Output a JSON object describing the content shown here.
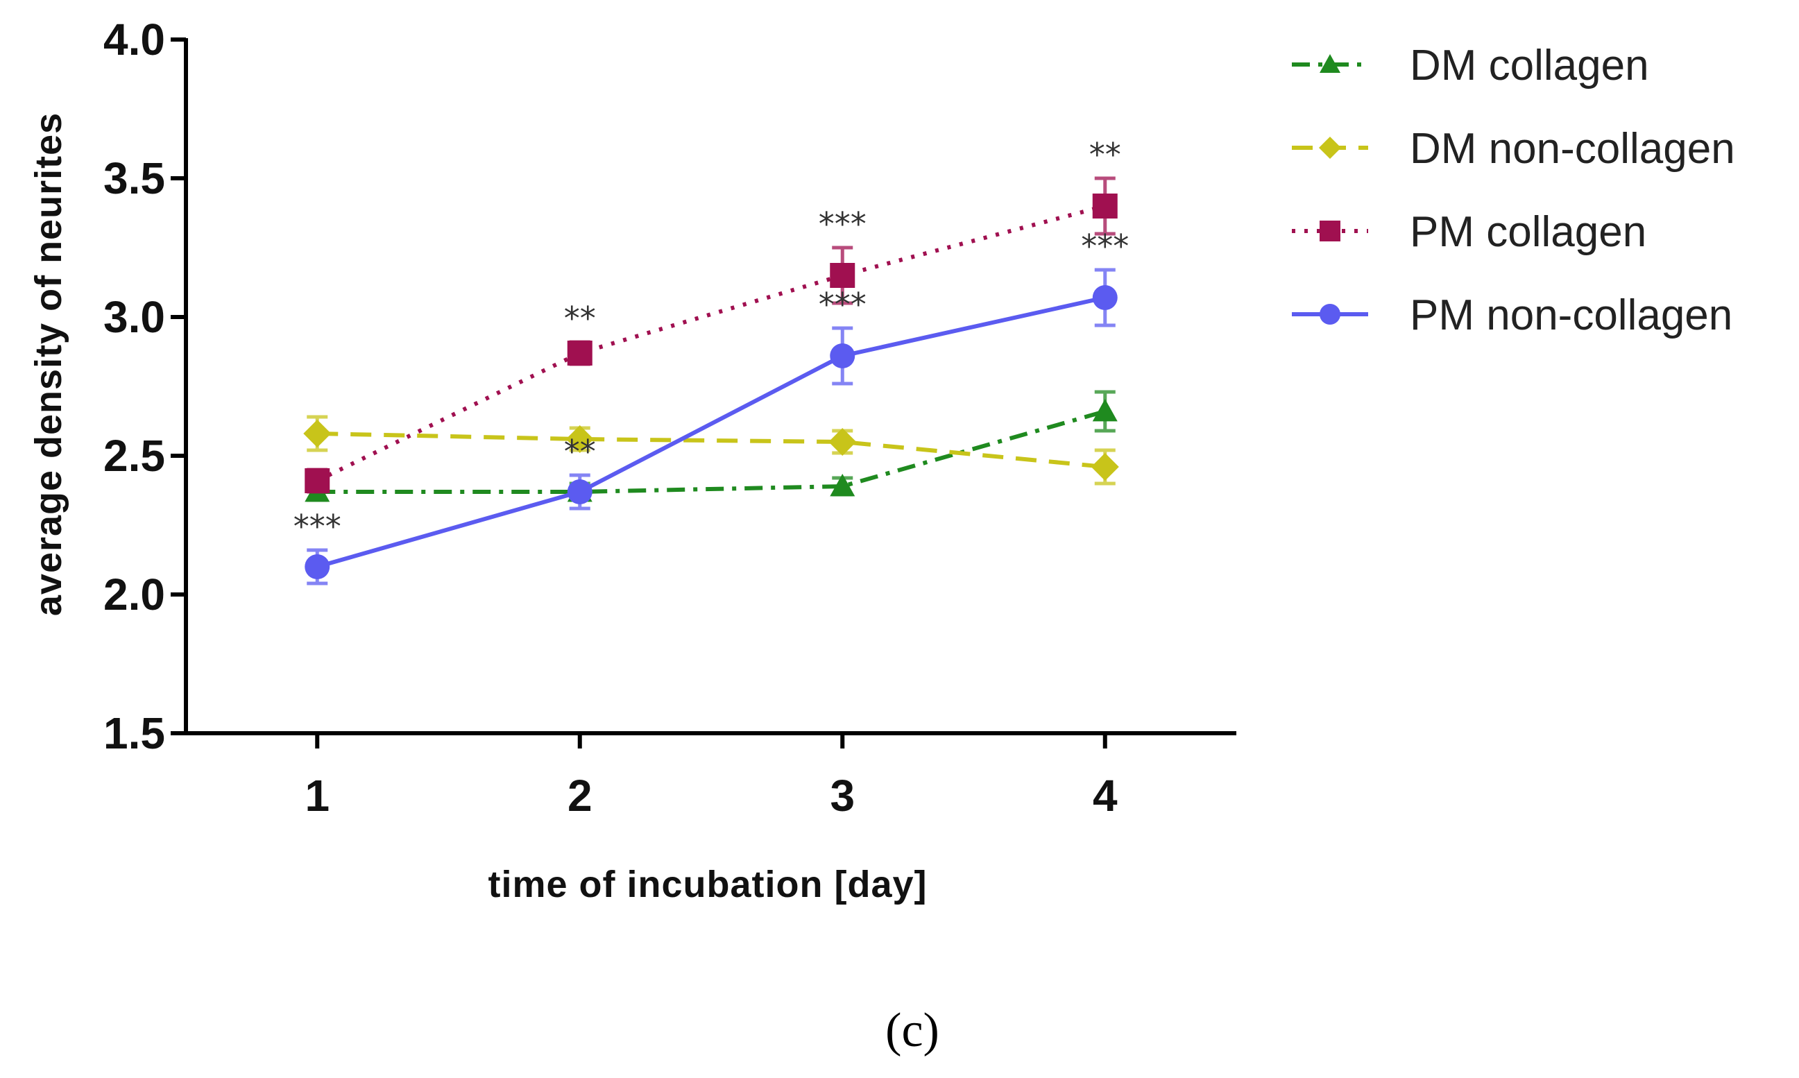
{
  "chart_data": {
    "type": "line",
    "xlabel": "time of incubation [day]",
    "ylabel": "average density of neurites",
    "x": [
      1,
      2,
      3,
      4
    ],
    "x_tick_labels": [
      "1",
      "2",
      "3",
      "4"
    ],
    "xlim": [
      0.5,
      4.5
    ],
    "ylim": [
      1.5,
      4.0
    ],
    "y_ticks": [
      1.5,
      2.0,
      2.5,
      3.0,
      3.5,
      4.0
    ],
    "y_tick_labels": [
      "1.5",
      "2.0",
      "2.5",
      "3.0",
      "3.5",
      "4.0"
    ],
    "grid": false,
    "legend_position": "right",
    "series": [
      {
        "name": "DM collagen",
        "values": [
          2.37,
          2.37,
          2.39,
          2.66
        ],
        "errors": [
          0.03,
          0.03,
          0.03,
          0.07
        ],
        "color": "#1f8a1f",
        "marker": "triangle",
        "line_style": "dash-dot",
        "sig": [
          "",
          "",
          "",
          ""
        ]
      },
      {
        "name": "DM non-collagen",
        "values": [
          2.58,
          2.56,
          2.55,
          2.46
        ],
        "errors": [
          0.06,
          0.04,
          0.04,
          0.06
        ],
        "color": "#c8c41a",
        "marker": "diamond",
        "line_style": "dashed",
        "sig": [
          "",
          "",
          "",
          ""
        ]
      },
      {
        "name": "PM collagen",
        "values": [
          2.41,
          2.87,
          3.15,
          3.4
        ],
        "errors": [
          0.04,
          0.04,
          0.1,
          0.1
        ],
        "color": "#a01050",
        "marker": "square",
        "line_style": "dotted",
        "sig": [
          "",
          "**",
          "***",
          "**"
        ]
      },
      {
        "name": "PM non-collagen",
        "values": [
          2.1,
          2.37,
          2.86,
          3.07
        ],
        "errors": [
          0.06,
          0.06,
          0.1,
          0.1
        ],
        "color": "#5b5bf0",
        "marker": "circle",
        "line_style": "solid",
        "sig": [
          "***",
          "**",
          "***",
          "***"
        ]
      }
    ]
  },
  "caption": "(c)"
}
